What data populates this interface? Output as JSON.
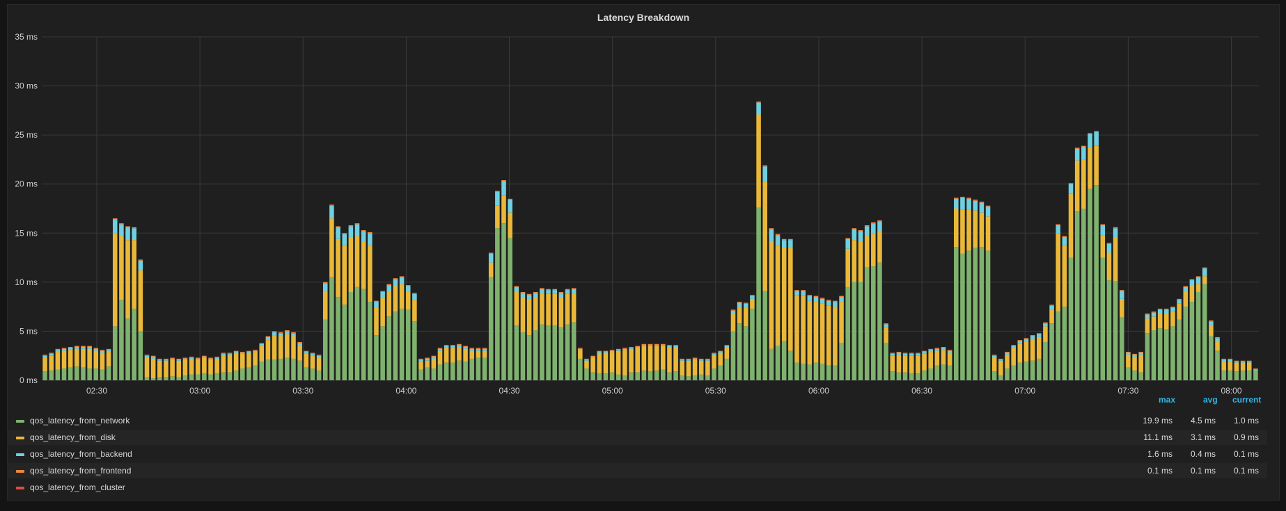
{
  "panel": {
    "title": "Latency Breakdown"
  },
  "legend": {
    "headers": {
      "max": "max",
      "avg": "avg",
      "current": "current"
    },
    "items": [
      {
        "name": "qos_latency_from_network",
        "color": "#7eb26d",
        "max": "19.9 ms",
        "avg": "4.5 ms",
        "current": "1.0 ms"
      },
      {
        "name": "qos_latency_from_disk",
        "color": "#eab839",
        "max": "11.1 ms",
        "avg": "3.1 ms",
        "current": "0.9 ms"
      },
      {
        "name": "qos_latency_from_backend",
        "color": "#6ed0e0",
        "max": "1.6 ms",
        "avg": "0.4 ms",
        "current": "0.1 ms"
      },
      {
        "name": "qos_latency_from_frontend",
        "color": "#ef843c",
        "max": "0.1 ms",
        "avg": "0.1 ms",
        "current": "0.1 ms"
      },
      {
        "name": "qos_latency_from_cluster",
        "color": "#e24d42",
        "max": "",
        "avg": "",
        "current": ""
      }
    ]
  },
  "chart_data": {
    "type": "bar",
    "stacked": true,
    "title": "Latency Breakdown",
    "y_unit": "ms",
    "ylim": [
      0,
      35
    ],
    "y_ticks": [
      "0 ms",
      "5 ms",
      "10 ms",
      "15 ms",
      "20 ms",
      "25 ms",
      "30 ms",
      "35 ms"
    ],
    "x_ticks": [
      "02:30",
      "03:00",
      "03:30",
      "04:00",
      "04:30",
      "05:00",
      "05:30",
      "06:00",
      "06:30",
      "07:00",
      "07:30",
      "08:00"
    ],
    "x_range": [
      "02:14",
      "08:08"
    ],
    "interval_minutes": 2,
    "grid": true,
    "legend_position": "bottom",
    "series": [
      {
        "name": "qos_latency_from_network",
        "color": "#7eb26d",
        "values": [
          0.9,
          1.0,
          1.1,
          1.2,
          1.3,
          1.4,
          1.3,
          1.2,
          1.2,
          1.1,
          1.4,
          5.5,
          8.2,
          6.3,
          7.3,
          5.0,
          0.3,
          0.2,
          0.3,
          0.3,
          0.4,
          0.3,
          0.5,
          0.6,
          0.6,
          0.7,
          0.6,
          0.7,
          0.8,
          0.8,
          1.0,
          1.2,
          1.3,
          1.5,
          1.9,
          2.1,
          2.1,
          2.2,
          2.3,
          2.2,
          2.0,
          1.3,
          1.2,
          1.0,
          6.2,
          10.5,
          8.5,
          7.7,
          9.0,
          9.5,
          9.3,
          8.0,
          4.6,
          5.5,
          6.5,
          7.0,
          7.3,
          7.2,
          6.0,
          1.1,
          1.3,
          1.2,
          1.6,
          1.8,
          1.8,
          2.0,
          1.9,
          2.2,
          2.3,
          2.3,
          10.5,
          15.5,
          16.0,
          14.5,
          5.6,
          4.9,
          4.6,
          5.1,
          5.7,
          5.6,
          5.6,
          5.4,
          5.7,
          5.9,
          2.2,
          1.2,
          0.8,
          0.7,
          0.7,
          0.8,
          0.6,
          0.5,
          0.8,
          0.8,
          1.0,
          0.9,
          1.0,
          1.1,
          0.8,
          0.9,
          0.5,
          0.4,
          0.5,
          0.6,
          0.5,
          1.2,
          1.5,
          2.2,
          5.0,
          5.8,
          5.5,
          7.3,
          17.6,
          9.1,
          3.2,
          3.5,
          4.0,
          3.0,
          1.8,
          1.7,
          1.6,
          1.8,
          1.7,
          1.5,
          1.5,
          3.8,
          9.5,
          10.0,
          10.0,
          11.5,
          11.6,
          12.0,
          3.8,
          0.9,
          0.8,
          0.8,
          0.7,
          0.7,
          1.0,
          1.2,
          1.5,
          1.6,
          1.5,
          13.6,
          12.9,
          13.2,
          13.5,
          13.6,
          13.2,
          0.9,
          0.5,
          1.2,
          1.5,
          1.8,
          1.9,
          2.0,
          2.2,
          3.9,
          5.8,
          7.0,
          7.5,
          12.5,
          17.2,
          17.5,
          19.5,
          19.9,
          12.5,
          10.2,
          10.1,
          6.4,
          1.3,
          1.0,
          0.8,
          4.8,
          5.1,
          5.3,
          5.2,
          5.5,
          6.2,
          7.5,
          8.0,
          9.0,
          9.8,
          4.5,
          3.0,
          1.0,
          1.0,
          0.9,
          1.0,
          1.0,
          1.0
        ]
      },
      {
        "name": "qos_latency_from_disk",
        "color": "#eab839",
        "values": [
          1.4,
          1.5,
          1.8,
          1.8,
          1.8,
          1.8,
          1.9,
          2.0,
          1.8,
          1.7,
          1.5,
          9.5,
          6.5,
          8.0,
          7.0,
          6.2,
          2.0,
          2.0,
          1.7,
          1.7,
          1.7,
          1.7,
          1.6,
          1.6,
          1.5,
          1.6,
          1.5,
          1.5,
          1.8,
          1.8,
          1.8,
          1.5,
          1.5,
          1.4,
          1.6,
          2.0,
          2.5,
          2.3,
          2.4,
          2.3,
          1.6,
          1.4,
          1.3,
          1.3,
          2.8,
          6.0,
          5.9,
          6.0,
          5.6,
          5.2,
          4.8,
          5.8,
          2.8,
          2.9,
          2.5,
          2.6,
          2.5,
          1.8,
          2.2,
          0.8,
          0.7,
          1.0,
          1.4,
          1.5,
          1.5,
          1.4,
          1.3,
          0.8,
          0.7,
          0.7,
          1.5,
          2.3,
          2.8,
          2.6,
          3.5,
          3.6,
          3.7,
          3.4,
          3.2,
          3.2,
          3.2,
          3.1,
          3.1,
          3.0,
          0.9,
          0.8,
          1.5,
          2.1,
          2.1,
          2.1,
          2.4,
          2.6,
          2.4,
          2.5,
          2.5,
          2.6,
          2.5,
          2.4,
          2.6,
          2.5,
          1.5,
          1.6,
          1.6,
          1.4,
          1.5,
          1.4,
          1.3,
          1.2,
          1.8,
          1.7,
          1.9,
          1.0,
          9.5,
          11.1,
          11.0,
          10.3,
          9.5,
          10.5,
          6.8,
          6.9,
          6.5,
          6.2,
          6.1,
          6.1,
          6.0,
          4.2,
          3.9,
          4.3,
          4.1,
          3.2,
          3.3,
          3.2,
          1.6,
          1.6,
          1.8,
          1.7,
          1.8,
          1.8,
          1.7,
          1.7,
          1.5,
          1.5,
          1.3,
          3.9,
          4.5,
          4.2,
          3.8,
          3.5,
          3.5,
          1.4,
          1.5,
          1.4,
          1.8,
          1.9,
          2.0,
          2.2,
          2.2,
          1.6,
          1.4,
          8.0,
          6.2,
          6.5,
          5.2,
          5.0,
          4.2,
          4.0,
          2.3,
          2.8,
          4.5,
          1.9,
          1.3,
          1.4,
          1.8,
          1.5,
          1.4,
          1.5,
          1.6,
          1.5,
          1.6,
          1.5,
          1.6,
          0.8,
          0.8,
          1.1,
          1.0,
          0.9,
          0.9,
          0.9,
          0.8,
          0.8
        ]
      },
      {
        "name": "qos_latency_from_backend",
        "color": "#6ed0e0",
        "values": [
          0.2,
          0.2,
          0.2,
          0.2,
          0.2,
          0.2,
          0.2,
          0.2,
          0.2,
          0.2,
          0.2,
          1.4,
          1.2,
          1.3,
          1.2,
          1.0,
          0.2,
          0.2,
          0.1,
          0.1,
          0.1,
          0.1,
          0.1,
          0.1,
          0.1,
          0.1,
          0.1,
          0.1,
          0.1,
          0.1,
          0.1,
          0.1,
          0.1,
          0.1,
          0.2,
          0.3,
          0.3,
          0.3,
          0.3,
          0.3,
          0.2,
          0.2,
          0.2,
          0.2,
          0.9,
          1.3,
          1.2,
          1.2,
          1.1,
          1.2,
          1.1,
          1.2,
          0.6,
          0.6,
          0.7,
          0.7,
          0.7,
          0.6,
          0.6,
          0.2,
          0.2,
          0.2,
          0.2,
          0.2,
          0.2,
          0.2,
          0.2,
          0.2,
          0.2,
          0.2,
          0.9,
          1.4,
          1.5,
          1.3,
          0.4,
          0.4,
          0.4,
          0.4,
          0.4,
          0.4,
          0.4,
          0.4,
          0.4,
          0.4,
          0.1,
          0.1,
          0.1,
          0.1,
          0.1,
          0.1,
          0.1,
          0.1,
          0.1,
          0.1,
          0.1,
          0.1,
          0.1,
          0.1,
          0.1,
          0.1,
          0.1,
          0.1,
          0.1,
          0.1,
          0.1,
          0.1,
          0.1,
          0.1,
          0.3,
          0.4,
          0.4,
          0.3,
          1.2,
          1.6,
          1.2,
          1.0,
          0.8,
          0.8,
          0.5,
          0.5,
          0.5,
          0.5,
          0.5,
          0.5,
          0.5,
          0.5,
          1.0,
          1.1,
          1.1,
          1.0,
          1.1,
          1.0,
          0.3,
          0.2,
          0.2,
          0.2,
          0.2,
          0.2,
          0.2,
          0.2,
          0.2,
          0.2,
          0.2,
          1.0,
          1.2,
          1.1,
          1.0,
          1.0,
          1.0,
          0.2,
          0.1,
          0.2,
          0.2,
          0.3,
          0.3,
          0.3,
          0.3,
          0.3,
          0.4,
          0.8,
          0.9,
          1.0,
          1.2,
          1.3,
          1.4,
          1.4,
          1.0,
          0.9,
          0.9,
          0.8,
          0.2,
          0.2,
          0.2,
          0.4,
          0.4,
          0.4,
          0.4,
          0.4,
          0.4,
          0.5,
          0.6,
          0.7,
          0.8,
          0.4,
          0.3,
          0.2,
          0.2,
          0.1,
          0.1,
          0.1,
          0.1
        ]
      },
      {
        "name": "qos_latency_from_frontend",
        "color": "#ef843c",
        "values": [
          0.1,
          0.1,
          0.1,
          0.1,
          0.1,
          0.1,
          0.1,
          0.1,
          0.1,
          0.1,
          0.1,
          0.1,
          0.1,
          0.1,
          0.1,
          0.1,
          0.1,
          0.1,
          0.1,
          0.1,
          0.1,
          0.1,
          0.1,
          0.1,
          0.1,
          0.1,
          0.1,
          0.1,
          0.1,
          0.1,
          0.1,
          0.1,
          0.1,
          0.1,
          0.1,
          0.1,
          0.1,
          0.1,
          0.1,
          0.1,
          0.1,
          0.1,
          0.1,
          0.1,
          0.1,
          0.1,
          0.1,
          0.1,
          0.1,
          0.1,
          0.1,
          0.1,
          0.1,
          0.1,
          0.1,
          0.1,
          0.1,
          0.1,
          0.1,
          0.1,
          0.1,
          0.1,
          0.1,
          0.1,
          0.1,
          0.1,
          0.1,
          0.1,
          0.1,
          0.1,
          0.1,
          0.1,
          0.1,
          0.1,
          0.1,
          0.1,
          0.1,
          0.1,
          0.1,
          0.1,
          0.1,
          0.1,
          0.1,
          0.1,
          0.1,
          0.1,
          0.1,
          0.1,
          0.1,
          0.1,
          0.1,
          0.1,
          0.1,
          0.1,
          0.1,
          0.1,
          0.1,
          0.1,
          0.1,
          0.1,
          0.1,
          0.1,
          0.1,
          0.1,
          0.1,
          0.1,
          0.1,
          0.1,
          0.1,
          0.1,
          0.1,
          0.1,
          0.1,
          0.1,
          0.1,
          0.1,
          0.1,
          0.1,
          0.1,
          0.1,
          0.1,
          0.1,
          0.1,
          0.1,
          0.1,
          0.1,
          0.1,
          0.1,
          0.1,
          0.1,
          0.1,
          0.1,
          0.1,
          0.1,
          0.1,
          0.1,
          0.1,
          0.1,
          0.1,
          0.1,
          0.1,
          0.1,
          0.1,
          0.1,
          0.1,
          0.1,
          0.1,
          0.1,
          0.1,
          0.1,
          0.1,
          0.1,
          0.1,
          0.1,
          0.1,
          0.1,
          0.1,
          0.1,
          0.1,
          0.1,
          0.1,
          0.1,
          0.1,
          0.1,
          0.1,
          0.1,
          0.1,
          0.1,
          0.1,
          0.1,
          0.1,
          0.1,
          0.1,
          0.1,
          0.1,
          0.1,
          0.1,
          0.1,
          0.1,
          0.1,
          0.1,
          0.1,
          0.1,
          0.1,
          0.1,
          0.1,
          0.1,
          0.1,
          0.1,
          0.1,
          0.1,
          0.1,
          0.1,
          0.1,
          0.1,
          0.1
        ]
      }
    ]
  }
}
